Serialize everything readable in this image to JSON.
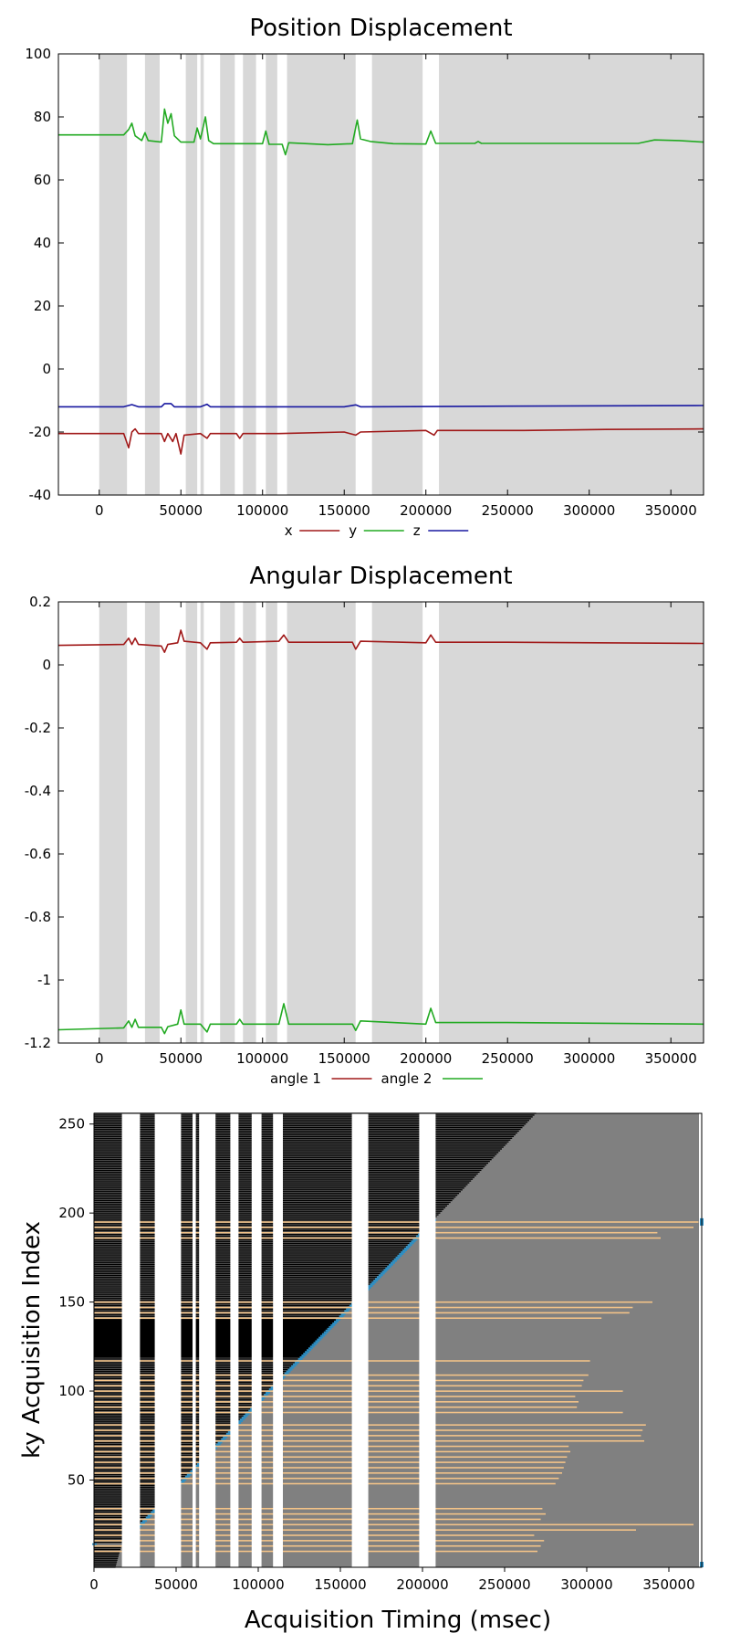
{
  "chart_data": [
    {
      "type": "line",
      "title": "Position Displacement",
      "xlabel": "",
      "ylabel": "",
      "xlim": [
        -25000,
        370000
      ],
      "ylim": [
        -40,
        100
      ],
      "x_ticks": [
        0,
        50000,
        100000,
        150000,
        200000,
        250000,
        300000,
        350000
      ],
      "y_ticks": [
        -40,
        -20,
        0,
        20,
        40,
        60,
        80,
        100
      ],
      "legend_position": "bottom",
      "background_bands": [
        [
          0,
          17000
        ],
        [
          28000,
          37000
        ],
        [
          53000,
          60000
        ],
        [
          62000,
          64000
        ],
        [
          74000,
          83000
        ],
        [
          88000,
          96000
        ],
        [
          102000,
          109000
        ],
        [
          115000,
          157000
        ],
        [
          167000,
          198000
        ],
        [
          208000,
          370000
        ]
      ],
      "series": [
        {
          "name": "x",
          "color": "#a01818",
          "points": [
            [
              -25000,
              -20.5
            ],
            [
              15000,
              -20.5
            ],
            [
              18000,
              -25
            ],
            [
              20000,
              -20
            ],
            [
              22000,
              -19
            ],
            [
              24000,
              -20.5
            ],
            [
              38000,
              -20.5
            ],
            [
              40000,
              -23
            ],
            [
              42000,
              -20.5
            ],
            [
              45000,
              -23
            ],
            [
              47000,
              -20.5
            ],
            [
              50000,
              -27
            ],
            [
              52000,
              -21
            ],
            [
              62000,
              -20.5
            ],
            [
              66000,
              -22
            ],
            [
              68000,
              -20.5
            ],
            [
              84000,
              -20.5
            ],
            [
              86000,
              -22
            ],
            [
              88000,
              -20.5
            ],
            [
              110000,
              -20.5
            ],
            [
              150000,
              -20
            ],
            [
              157000,
              -21
            ],
            [
              160000,
              -20
            ],
            [
              200000,
              -19.5
            ],
            [
              205000,
              -21
            ],
            [
              207000,
              -19.5
            ],
            [
              260000,
              -19.5
            ],
            [
              310000,
              -19.2
            ],
            [
              370000,
              -19
            ]
          ]
        },
        {
          "name": "y",
          "color": "#22aa22",
          "points": [
            [
              -25000,
              74.3
            ],
            [
              15000,
              74.3
            ],
            [
              18000,
              76
            ],
            [
              20000,
              78
            ],
            [
              22000,
              74
            ],
            [
              26000,
              72.5
            ],
            [
              28000,
              75
            ],
            [
              30000,
              72.5
            ],
            [
              38000,
              72
            ],
            [
              40000,
              82.5
            ],
            [
              42000,
              78
            ],
            [
              44000,
              81
            ],
            [
              46000,
              74
            ],
            [
              50000,
              72
            ],
            [
              58000,
              72
            ],
            [
              60000,
              76.5
            ],
            [
              62000,
              73
            ],
            [
              65000,
              80
            ],
            [
              67000,
              72.5
            ],
            [
              70000,
              71.5
            ],
            [
              100000,
              71.5
            ],
            [
              102000,
              75.5
            ],
            [
              104000,
              71.3
            ],
            [
              112000,
              71.3
            ],
            [
              114000,
              68
            ],
            [
              116000,
              71.8
            ],
            [
              140000,
              71.2
            ],
            [
              155000,
              71.5
            ],
            [
              158000,
              79
            ],
            [
              160000,
              73
            ],
            [
              166000,
              72.2
            ],
            [
              180000,
              71.5
            ],
            [
              200000,
              71.4
            ],
            [
              203000,
              75.5
            ],
            [
              206000,
              71.6
            ],
            [
              230000,
              71.6
            ],
            [
              232000,
              72.2
            ],
            [
              234000,
              71.6
            ],
            [
              330000,
              71.6
            ],
            [
              340000,
              72.7
            ],
            [
              355000,
              72.5
            ],
            [
              370000,
              72
            ]
          ]
        },
        {
          "name": "z",
          "color": "#1818a0",
          "points": [
            [
              -25000,
              -12
            ],
            [
              15000,
              -12
            ],
            [
              20000,
              -11.3
            ],
            [
              24000,
              -12
            ],
            [
              38000,
              -12
            ],
            [
              40000,
              -11
            ],
            [
              44000,
              -11
            ],
            [
              46000,
              -12
            ],
            [
              62000,
              -12
            ],
            [
              66000,
              -11.2
            ],
            [
              68000,
              -12
            ],
            [
              150000,
              -12
            ],
            [
              157000,
              -11.4
            ],
            [
              160000,
              -12
            ],
            [
              250000,
              -11.8
            ],
            [
              370000,
              -11.6
            ]
          ]
        }
      ]
    },
    {
      "type": "line",
      "title": "Angular Displacement",
      "xlabel": "",
      "ylabel": "",
      "xlim": [
        -25000,
        370000
      ],
      "ylim": [
        -1.2,
        0.2
      ],
      "x_ticks": [
        0,
        50000,
        100000,
        150000,
        200000,
        250000,
        300000,
        350000
      ],
      "y_ticks": [
        -1.2,
        -1,
        -0.8,
        -0.6,
        -0.4,
        -0.2,
        0,
        0.2
      ],
      "legend_position": "bottom",
      "background_bands": [
        [
          0,
          17000
        ],
        [
          28000,
          37000
        ],
        [
          53000,
          60000
        ],
        [
          62000,
          64000
        ],
        [
          74000,
          83000
        ],
        [
          88000,
          96000
        ],
        [
          102000,
          109000
        ],
        [
          115000,
          157000
        ],
        [
          167000,
          198000
        ],
        [
          208000,
          370000
        ]
      ],
      "series": [
        {
          "name": "angle 1",
          "color": "#a01818",
          "points": [
            [
              -25000,
              0.062
            ],
            [
              15000,
              0.065
            ],
            [
              18000,
              0.085
            ],
            [
              20000,
              0.065
            ],
            [
              22000,
              0.085
            ],
            [
              24000,
              0.065
            ],
            [
              38000,
              0.06
            ],
            [
              40000,
              0.04
            ],
            [
              42000,
              0.065
            ],
            [
              48000,
              0.07
            ],
            [
              50000,
              0.11
            ],
            [
              52000,
              0.075
            ],
            [
              62000,
              0.07
            ],
            [
              66000,
              0.05
            ],
            [
              68000,
              0.07
            ],
            [
              84000,
              0.072
            ],
            [
              86000,
              0.085
            ],
            [
              88000,
              0.072
            ],
            [
              110000,
              0.075
            ],
            [
              113000,
              0.095
            ],
            [
              116000,
              0.072
            ],
            [
              155000,
              0.072
            ],
            [
              157000,
              0.05
            ],
            [
              160000,
              0.075
            ],
            [
              200000,
              0.07
            ],
            [
              203000,
              0.095
            ],
            [
              206000,
              0.072
            ],
            [
              250000,
              0.072
            ],
            [
              370000,
              0.068
            ]
          ]
        },
        {
          "name": "angle 2",
          "color": "#22aa22",
          "points": [
            [
              -25000,
              -1.158
            ],
            [
              15000,
              -1.152
            ],
            [
              18000,
              -1.13
            ],
            [
              20000,
              -1.15
            ],
            [
              22000,
              -1.125
            ],
            [
              24000,
              -1.15
            ],
            [
              38000,
              -1.15
            ],
            [
              40000,
              -1.17
            ],
            [
              42000,
              -1.148
            ],
            [
              48000,
              -1.14
            ],
            [
              50000,
              -1.095
            ],
            [
              52000,
              -1.14
            ],
            [
              62000,
              -1.14
            ],
            [
              66000,
              -1.165
            ],
            [
              68000,
              -1.14
            ],
            [
              84000,
              -1.14
            ],
            [
              86000,
              -1.125
            ],
            [
              88000,
              -1.14
            ],
            [
              110000,
              -1.14
            ],
            [
              113000,
              -1.075
            ],
            [
              116000,
              -1.14
            ],
            [
              155000,
              -1.14
            ],
            [
              157000,
              -1.16
            ],
            [
              160000,
              -1.13
            ],
            [
              200000,
              -1.14
            ],
            [
              203000,
              -1.09
            ],
            [
              206000,
              -1.135
            ],
            [
              250000,
              -1.135
            ],
            [
              370000,
              -1.14
            ]
          ]
        }
      ]
    },
    {
      "type": "scatter",
      "title": "",
      "xlabel": "Acquisition Timing (msec)",
      "ylabel": "ky Acquisition Index",
      "xlim": [
        0,
        370000
      ],
      "ylim": [
        1,
        256
      ],
      "x_ticks": [
        0,
        50000,
        100000,
        150000,
        200000,
        250000,
        300000,
        350000
      ],
      "y_ticks": [
        50,
        100,
        150,
        200,
        250
      ],
      "background_color": "#808080",
      "white_gaps": [
        [
          17000,
          28000
        ],
        [
          37000,
          53000
        ],
        [
          60000,
          62000
        ],
        [
          64000,
          74000
        ],
        [
          83000,
          88000
        ],
        [
          96000,
          102000
        ],
        [
          109000,
          115000
        ],
        [
          157000,
          167000
        ],
        [
          198000,
          208000
        ]
      ],
      "acquisition_rate_ms_per_line": 1042,
      "acquisition_start": [
        17000,
        14
      ],
      "reacquired_lines": [
        10,
        13,
        16,
        19,
        22,
        25,
        28,
        31,
        34,
        48,
        51,
        54,
        57,
        60,
        63,
        66,
        69,
        72,
        75,
        78,
        81,
        88,
        91,
        94,
        97,
        100,
        103,
        106,
        109,
        117,
        141,
        144,
        147,
        150,
        186,
        189,
        192,
        195
      ],
      "reacquired_end_times": [
        270000,
        272000,
        274000,
        268000,
        330000,
        365000,
        272000,
        275000,
        273000,
        281000,
        283000,
        285000,
        286000,
        287000,
        288000,
        290000,
        289000,
        335000,
        333000,
        334000,
        336000,
        322000,
        294000,
        295000,
        293000,
        322000,
        297000,
        298000,
        301000,
        302000,
        309000,
        326000,
        328000,
        340000,
        345000,
        343000,
        365000,
        368000
      ],
      "marker_colors": {
        "reacquired": "#f5c488",
        "blue": "#2d8fc4",
        "black": "#000000"
      }
    }
  ],
  "labels": {
    "chart1_title": "Position Displacement",
    "chart2_title": "Angular Displacement",
    "xaxis_title": "Acquisition Timing (msec)",
    "yaxis_title": "ky Acquisition Index"
  }
}
